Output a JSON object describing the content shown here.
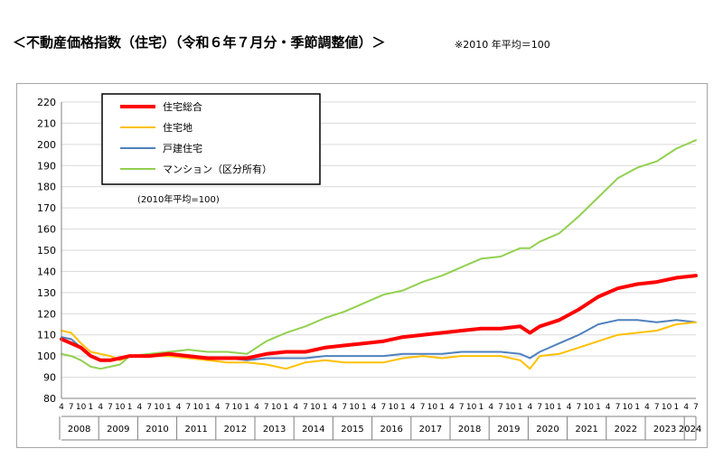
{
  "header": {
    "title": "＜不動産価格指数（住宅）（令和６年７月分・季節調整値）＞",
    "note": "※2010 年平均＝100"
  },
  "chart_data": {
    "type": "line",
    "note": "(2010年平均=100)",
    "ylim": [
      80,
      220
    ],
    "yticks": [
      80,
      90,
      100,
      110,
      120,
      130,
      140,
      150,
      160,
      170,
      180,
      190,
      200,
      210,
      220
    ],
    "grid": true,
    "legend_position": "top-left",
    "x_start": "2008-04",
    "x_end": "2024-07",
    "month_ticks": [
      "4",
      "7",
      "10",
      "1"
    ],
    "last_year_month_ticks": [
      "4",
      "7"
    ],
    "years": [
      "2008",
      "2009",
      "2010",
      "2011",
      "2012",
      "2013",
      "2014",
      "2015",
      "2016",
      "2017",
      "2018",
      "2019",
      "2020",
      "2021",
      "2022",
      "2023",
      "2024"
    ],
    "series": [
      {
        "name": "住宅総合",
        "color": "#ff0000",
        "points": [
          [
            "2008-04",
            108
          ],
          [
            "2008-07",
            106
          ],
          [
            "2008-10",
            104
          ],
          [
            "2009-01",
            100
          ],
          [
            "2009-04",
            98
          ],
          [
            "2009-07",
            98
          ],
          [
            "2009-10",
            99
          ],
          [
            "2010-01",
            100
          ],
          [
            "2010-07",
            100
          ],
          [
            "2011-01",
            101
          ],
          [
            "2011-07",
            100
          ],
          [
            "2012-01",
            99
          ],
          [
            "2012-07",
            99
          ],
          [
            "2013-01",
            99
          ],
          [
            "2013-07",
            101
          ],
          [
            "2014-01",
            102
          ],
          [
            "2014-07",
            102
          ],
          [
            "2015-01",
            104
          ],
          [
            "2015-07",
            105
          ],
          [
            "2016-01",
            106
          ],
          [
            "2016-07",
            107
          ],
          [
            "2017-01",
            109
          ],
          [
            "2017-07",
            110
          ],
          [
            "2018-01",
            111
          ],
          [
            "2018-07",
            112
          ],
          [
            "2019-01",
            113
          ],
          [
            "2019-07",
            113
          ],
          [
            "2020-01",
            114
          ],
          [
            "2020-04",
            111
          ],
          [
            "2020-07",
            114
          ],
          [
            "2021-01",
            117
          ],
          [
            "2021-07",
            122
          ],
          [
            "2022-01",
            128
          ],
          [
            "2022-07",
            132
          ],
          [
            "2023-01",
            134
          ],
          [
            "2023-07",
            135
          ],
          [
            "2024-01",
            137
          ],
          [
            "2024-07",
            138
          ]
        ]
      },
      {
        "name": "住宅地",
        "color": "#ffc000",
        "points": [
          [
            "2008-04",
            112
          ],
          [
            "2008-07",
            111
          ],
          [
            "2008-10",
            106
          ],
          [
            "2009-01",
            102
          ],
          [
            "2009-04",
            101
          ],
          [
            "2009-07",
            100
          ],
          [
            "2009-10",
            98
          ],
          [
            "2010-01",
            100
          ],
          [
            "2010-07",
            100
          ],
          [
            "2011-01",
            100
          ],
          [
            "2011-07",
            99
          ],
          [
            "2012-01",
            98
          ],
          [
            "2012-07",
            97
          ],
          [
            "2013-01",
            97
          ],
          [
            "2013-07",
            96
          ],
          [
            "2014-01",
            94
          ],
          [
            "2014-07",
            97
          ],
          [
            "2015-01",
            98
          ],
          [
            "2015-07",
            97
          ],
          [
            "2016-01",
            97
          ],
          [
            "2016-07",
            97
          ],
          [
            "2017-01",
            99
          ],
          [
            "2017-07",
            100
          ],
          [
            "2018-01",
            99
          ],
          [
            "2018-07",
            100
          ],
          [
            "2019-01",
            100
          ],
          [
            "2019-07",
            100
          ],
          [
            "2020-01",
            98
          ],
          [
            "2020-04",
            94
          ],
          [
            "2020-07",
            100
          ],
          [
            "2021-01",
            101
          ],
          [
            "2021-07",
            104
          ],
          [
            "2022-01",
            107
          ],
          [
            "2022-07",
            110
          ],
          [
            "2023-01",
            111
          ],
          [
            "2023-07",
            112
          ],
          [
            "2024-01",
            115
          ],
          [
            "2024-07",
            116
          ]
        ]
      },
      {
        "name": "戸建住宅",
        "color": "#4f81bd",
        "points": [
          [
            "2008-04",
            109
          ],
          [
            "2008-07",
            108
          ],
          [
            "2008-10",
            104
          ],
          [
            "2009-01",
            100
          ],
          [
            "2009-04",
            98
          ],
          [
            "2009-07",
            98
          ],
          [
            "2009-10",
            99
          ],
          [
            "2010-01",
            100
          ],
          [
            "2010-07",
            100
          ],
          [
            "2011-01",
            100
          ],
          [
            "2011-07",
            100
          ],
          [
            "2012-01",
            99
          ],
          [
            "2012-07",
            99
          ],
          [
            "2013-01",
            98
          ],
          [
            "2013-07",
            99
          ],
          [
            "2014-01",
            99
          ],
          [
            "2014-07",
            99
          ],
          [
            "2015-01",
            100
          ],
          [
            "2015-07",
            100
          ],
          [
            "2016-01",
            100
          ],
          [
            "2016-07",
            100
          ],
          [
            "2017-01",
            101
          ],
          [
            "2017-07",
            101
          ],
          [
            "2018-01",
            101
          ],
          [
            "2018-07",
            102
          ],
          [
            "2019-01",
            102
          ],
          [
            "2019-07",
            102
          ],
          [
            "2020-01",
            101
          ],
          [
            "2020-04",
            99
          ],
          [
            "2020-07",
            102
          ],
          [
            "2021-01",
            106
          ],
          [
            "2021-07",
            110
          ],
          [
            "2022-01",
            115
          ],
          [
            "2022-07",
            117
          ],
          [
            "2023-01",
            117
          ],
          [
            "2023-07",
            116
          ],
          [
            "2024-01",
            117
          ],
          [
            "2024-07",
            116
          ]
        ]
      },
      {
        "name": "マンション（区分所有）",
        "color": "#92d050",
        "points": [
          [
            "2008-04",
            101
          ],
          [
            "2008-07",
            100
          ],
          [
            "2008-10",
            98
          ],
          [
            "2009-01",
            95
          ],
          [
            "2009-04",
            94
          ],
          [
            "2009-07",
            95
          ],
          [
            "2009-10",
            96
          ],
          [
            "2010-01",
            100
          ],
          [
            "2010-07",
            101
          ],
          [
            "2011-01",
            102
          ],
          [
            "2011-07",
            103
          ],
          [
            "2012-01",
            102
          ],
          [
            "2012-07",
            102
          ],
          [
            "2013-01",
            101
          ],
          [
            "2013-07",
            107
          ],
          [
            "2014-01",
            111
          ],
          [
            "2014-07",
            114
          ],
          [
            "2015-01",
            118
          ],
          [
            "2015-07",
            121
          ],
          [
            "2016-01",
            125
          ],
          [
            "2016-07",
            129
          ],
          [
            "2017-01",
            131
          ],
          [
            "2017-07",
            135
          ],
          [
            "2018-01",
            138
          ],
          [
            "2018-07",
            142
          ],
          [
            "2019-01",
            146
          ],
          [
            "2019-07",
            147
          ],
          [
            "2020-01",
            151
          ],
          [
            "2020-04",
            151
          ],
          [
            "2020-07",
            154
          ],
          [
            "2021-01",
            158
          ],
          [
            "2021-07",
            166
          ],
          [
            "2022-01",
            175
          ],
          [
            "2022-07",
            184
          ],
          [
            "2023-01",
            189
          ],
          [
            "2023-07",
            192
          ],
          [
            "2024-01",
            198
          ],
          [
            "2024-07",
            202
          ]
        ]
      }
    ]
  }
}
